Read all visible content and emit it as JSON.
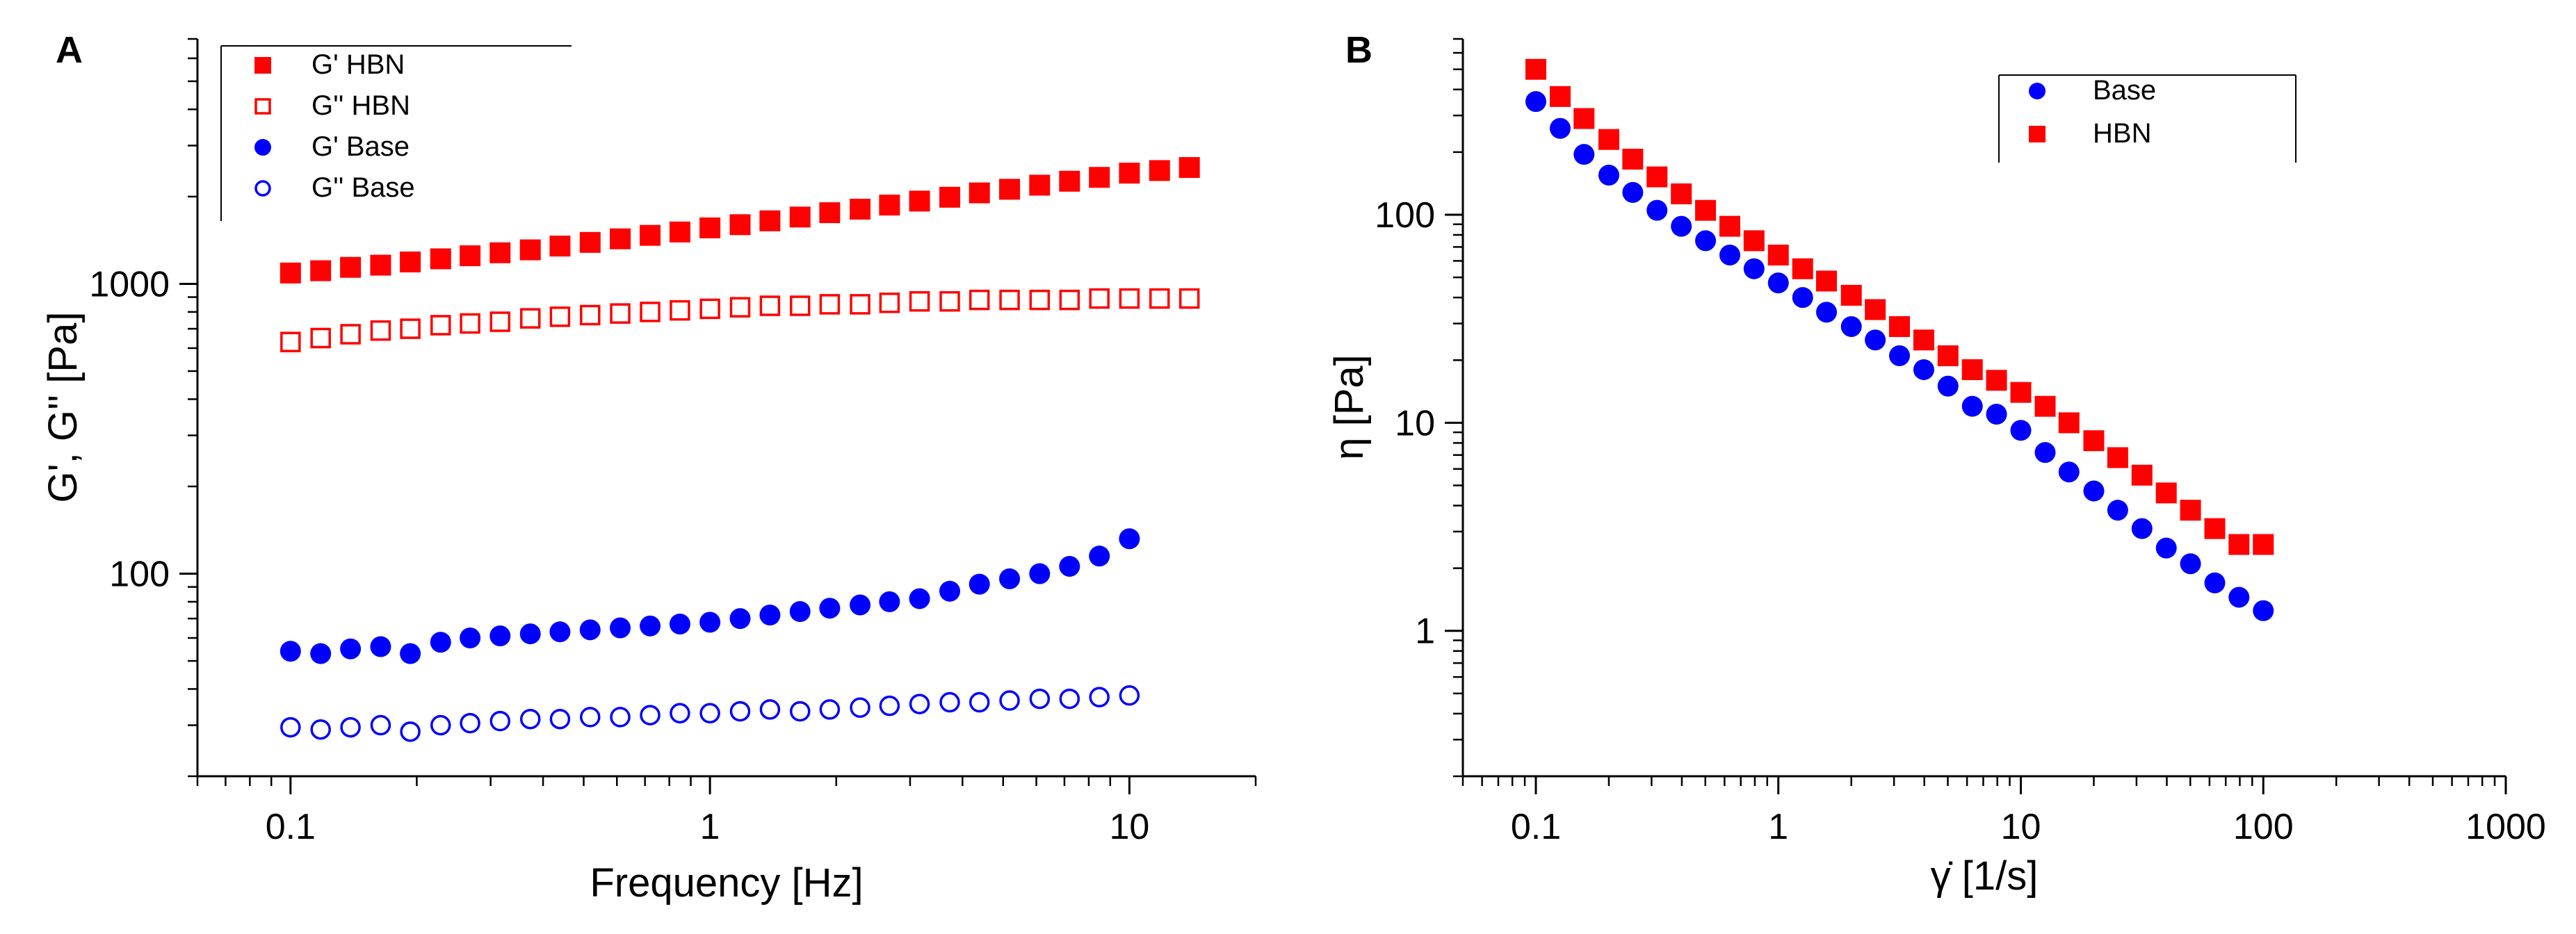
{
  "figure": {
    "panels": [
      "A",
      "B"
    ]
  },
  "chart_data": [
    {
      "panel_label": "A",
      "type": "scatter",
      "scale": {
        "x": "log",
        "y": "log"
      },
      "xlabel": "Frequency [Hz]",
      "ylabel": "G', G'' [Pa]",
      "xlim": [
        0.06,
        20
      ],
      "ylim": [
        20,
        7000
      ],
      "x_ticks": [
        0.1,
        1,
        10
      ],
      "x_tick_labels": [
        "0.1",
        "1",
        "10"
      ],
      "y_ticks": [
        100,
        1000
      ],
      "y_tick_labels": [
        "100",
        "1000"
      ],
      "legend": {
        "position": "top-left",
        "entries": [
          "G' HBN",
          "G'' HBN",
          "G' Base",
          "G'' Base"
        ]
      },
      "series": [
        {
          "name": "G' HBN",
          "color": "#ff0000",
          "marker": "square-filled",
          "x": [
            0.1,
            0.118,
            0.139,
            0.164,
            0.193,
            0.228,
            0.268,
            0.316,
            0.373,
            0.439,
            0.518,
            0.611,
            0.72,
            0.848,
            1.0,
            1.18,
            1.39,
            1.64,
            1.93,
            2.28,
            2.68,
            3.16,
            3.73,
            4.39,
            5.18,
            6.11,
            7.2,
            8.48,
            10.0,
            11.8,
            13.9
          ],
          "y": [
            1090,
            1110,
            1140,
            1160,
            1190,
            1220,
            1250,
            1280,
            1310,
            1350,
            1390,
            1430,
            1470,
            1510,
            1560,
            1600,
            1650,
            1700,
            1760,
            1810,
            1870,
            1930,
            1990,
            2060,
            2120,
            2190,
            2260,
            2330,
            2410,
            2460,
            2520
          ]
        },
        {
          "name": "G'' HBN",
          "color": "#ff0000",
          "marker": "square-open",
          "x": [
            0.1,
            0.118,
            0.139,
            0.164,
            0.193,
            0.228,
            0.268,
            0.316,
            0.373,
            0.439,
            0.518,
            0.611,
            0.72,
            0.848,
            1.0,
            1.18,
            1.39,
            1.64,
            1.93,
            2.28,
            2.68,
            3.16,
            3.73,
            4.39,
            5.18,
            6.11,
            7.2,
            8.48,
            10.0,
            11.8,
            13.9
          ],
          "y": [
            630,
            650,
            670,
            690,
            700,
            720,
            730,
            740,
            760,
            770,
            780,
            790,
            800,
            810,
            820,
            830,
            840,
            840,
            850,
            850,
            860,
            870,
            870,
            880,
            880,
            880,
            880,
            890,
            890,
            890,
            890
          ]
        },
        {
          "name": "G' Base",
          "color": "#0000ff",
          "marker": "circle-filled",
          "x": [
            0.1,
            0.118,
            0.139,
            0.164,
            0.193,
            0.228,
            0.268,
            0.316,
            0.373,
            0.439,
            0.518,
            0.611,
            0.72,
            0.848,
            1.0,
            1.18,
            1.39,
            1.64,
            1.93,
            2.28,
            2.68,
            3.16,
            3.73,
            4.39,
            5.18,
            6.11,
            7.2,
            8.48,
            10.0
          ],
          "y": [
            54,
            53,
            55,
            56,
            53,
            58,
            60,
            61,
            62,
            63,
            64,
            65,
            66,
            67,
            68,
            70,
            72,
            74,
            76,
            78,
            80,
            82,
            87,
            92,
            96,
            100,
            106,
            115,
            132
          ]
        },
        {
          "name": "G'' Base",
          "color": "#0000ff",
          "marker": "circle-open",
          "x": [
            0.1,
            0.118,
            0.139,
            0.164,
            0.193,
            0.228,
            0.268,
            0.316,
            0.373,
            0.439,
            0.518,
            0.611,
            0.72,
            0.848,
            1.0,
            1.18,
            1.39,
            1.64,
            1.93,
            2.28,
            2.68,
            3.16,
            3.73,
            4.39,
            5.18,
            6.11,
            7.2,
            8.48,
            10.0
          ],
          "y": [
            29.5,
            29,
            29.5,
            30,
            28.5,
            30,
            30.5,
            31,
            31.5,
            31.5,
            32,
            32,
            32.5,
            33,
            33,
            33.5,
            34,
            33.5,
            34,
            34.5,
            35,
            35.5,
            36,
            36,
            36.5,
            37,
            37,
            37.5,
            38
          ]
        }
      ]
    },
    {
      "panel_label": "B",
      "type": "scatter",
      "scale": {
        "x": "log",
        "y": "log"
      },
      "xlabel": "γ̇ [1/s]",
      "ylabel": "η [Pa]",
      "xlim": [
        0.05,
        1000
      ],
      "ylim": [
        0.2,
        700
      ],
      "x_ticks": [
        0.1,
        1,
        10,
        100,
        1000
      ],
      "x_tick_labels": [
        "0.1",
        "1",
        "10",
        "100",
        "1000"
      ],
      "y_ticks": [
        1,
        10,
        100
      ],
      "y_tick_labels": [
        "1",
        "10",
        "100"
      ],
      "legend": {
        "position": "top-center",
        "entries": [
          "Base",
          "HBN"
        ]
      },
      "series": [
        {
          "name": "Base",
          "color": "#0000ff",
          "marker": "circle-filled",
          "x": [
            0.1,
            0.126,
            0.158,
            0.2,
            0.251,
            0.316,
            0.398,
            0.501,
            0.631,
            0.794,
            1.0,
            1.26,
            1.58,
            2.0,
            2.51,
            3.16,
            3.98,
            5.01,
            6.31,
            7.94,
            10.0,
            12.6,
            15.8,
            20.0,
            25.1,
            31.6,
            39.8,
            50.1,
            63.1,
            79.4,
            100
          ],
          "y": [
            350,
            260,
            195,
            155,
            128,
            105,
            88,
            75,
            64,
            55,
            47,
            40,
            34,
            29,
            25,
            21,
            18,
            15,
            12,
            11,
            9.2,
            7.2,
            5.8,
            4.7,
            3.8,
            3.1,
            2.5,
            2.1,
            1.7,
            1.45,
            1.25
          ]
        },
        {
          "name": "HBN",
          "color": "#ff0000",
          "marker": "square-filled",
          "x": [
            0.1,
            0.126,
            0.158,
            0.2,
            0.251,
            0.316,
            0.398,
            0.501,
            0.631,
            0.794,
            1.0,
            1.26,
            1.58,
            2.0,
            2.51,
            3.16,
            3.98,
            5.01,
            6.31,
            7.94,
            10.0,
            12.6,
            15.8,
            20.0,
            25.1,
            31.6,
            39.8,
            50.1,
            63.1,
            79.4,
            100
          ],
          "y": [
            500,
            370,
            290,
            230,
            185,
            152,
            126,
            105,
            88,
            75,
            64,
            55,
            48,
            41,
            35,
            29,
            25,
            21,
            18,
            16,
            14,
            12,
            10,
            8.2,
            6.8,
            5.6,
            4.6,
            3.8,
            3.1,
            2.6,
            2.6
          ]
        }
      ]
    }
  ]
}
